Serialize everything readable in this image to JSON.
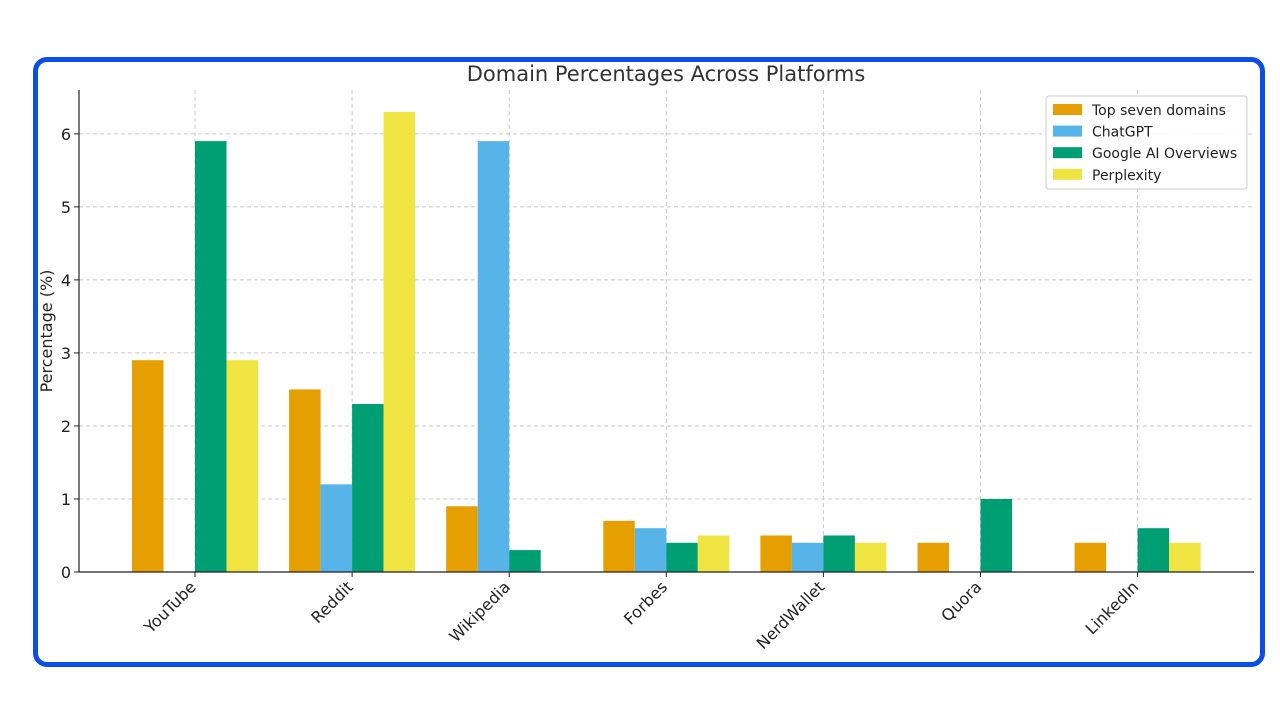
{
  "chart_data": {
    "type": "bar",
    "title": "Domain Percentages Across Platforms",
    "xlabel": "",
    "ylabel": "Percentage (%)",
    "categories": [
      "YouTube",
      "Reddit",
      "Wikipedia",
      "Forbes",
      "NerdWallet",
      "Quora",
      "LinkedIn"
    ],
    "series": [
      {
        "name": "Top seven domains",
        "color": "#E69F00",
        "values": [
          2.9,
          2.5,
          0.9,
          0.7,
          0.5,
          0.4,
          0.4
        ]
      },
      {
        "name": "ChatGPT",
        "color": "#56B4E9",
        "values": [
          0,
          1.2,
          5.9,
          0.6,
          0.4,
          0,
          0
        ]
      },
      {
        "name": "Google AI Overviews",
        "color": "#009E73",
        "values": [
          5.9,
          2.3,
          0.3,
          0.4,
          0.5,
          1.0,
          0.6
        ]
      },
      {
        "name": "Perplexity",
        "color": "#F0E442",
        "values": [
          2.9,
          6.3,
          0,
          0.5,
          0.4,
          0,
          0.4
        ]
      }
    ],
    "ylim": [
      0,
      6.6
    ],
    "yticks": [
      0,
      1,
      2,
      3,
      4,
      5,
      6
    ],
    "grid": true,
    "legend_position": "top-right"
  },
  "frame": {
    "border_color": "#0a4ee6"
  }
}
